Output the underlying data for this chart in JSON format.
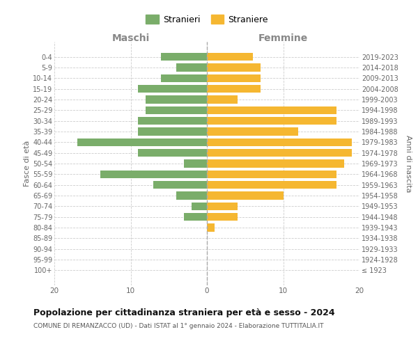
{
  "age_groups": [
    "100+",
    "95-99",
    "90-94",
    "85-89",
    "80-84",
    "75-79",
    "70-74",
    "65-69",
    "60-64",
    "55-59",
    "50-54",
    "45-49",
    "40-44",
    "35-39",
    "30-34",
    "25-29",
    "20-24",
    "15-19",
    "10-14",
    "5-9",
    "0-4"
  ],
  "birth_years": [
    "≤ 1923",
    "1924-1928",
    "1929-1933",
    "1934-1938",
    "1939-1943",
    "1944-1948",
    "1949-1953",
    "1954-1958",
    "1959-1963",
    "1964-1968",
    "1969-1973",
    "1974-1978",
    "1979-1983",
    "1984-1988",
    "1989-1993",
    "1994-1998",
    "1999-2003",
    "2004-2008",
    "2009-2013",
    "2014-2018",
    "2019-2023"
  ],
  "maschi": [
    0,
    0,
    0,
    0,
    0,
    3,
    2,
    4,
    7,
    14,
    3,
    9,
    17,
    9,
    9,
    8,
    8,
    9,
    6,
    4,
    6
  ],
  "femmine": [
    0,
    0,
    0,
    0,
    1,
    4,
    4,
    10,
    17,
    17,
    18,
    19,
    19,
    12,
    17,
    17,
    4,
    7,
    7,
    7,
    6
  ],
  "maschi_color": "#7aad6a",
  "femmine_color": "#f5b731",
  "background_color": "#ffffff",
  "grid_color": "#cccccc",
  "title": "Popolazione per cittadinanza straniera per età e sesso - 2024",
  "subtitle": "COMUNE DI REMANZACCO (UD) - Dati ISTAT al 1° gennaio 2024 - Elaborazione TUTTITALIA.IT",
  "xlabel_left": "Maschi",
  "xlabel_right": "Femmine",
  "ylabel_left": "Fasce di età",
  "ylabel_right": "Anni di nascita",
  "legend_maschi": "Stranieri",
  "legend_femmine": "Straniere",
  "xlim": 20,
  "bar_height": 0.75
}
